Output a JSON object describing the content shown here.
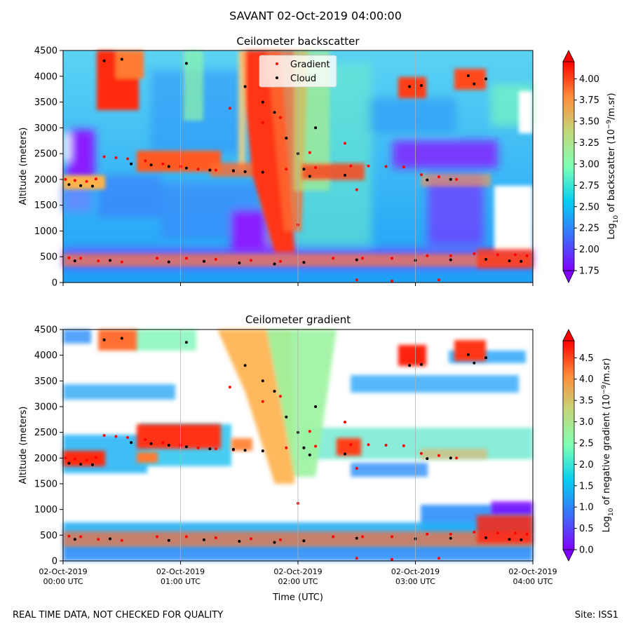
{
  "figure": {
    "title": "SAVANT 02-Oct-2019 04:00:00",
    "footer_left": "REAL TIME DATA, NOT CHECKED FOR QUALITY",
    "footer_right": "Site: ISS1"
  },
  "chart_data": [
    {
      "type": "heatmap",
      "title": "Ceilometer backscatter",
      "xlabel": "",
      "ylabel": "Altitude (meters)",
      "xlim": [
        0,
        4
      ],
      "ylim": [
        0,
        4500
      ],
      "yticks": [
        0,
        500,
        1000,
        1500,
        2000,
        2500,
        3000,
        3500,
        4000,
        4500
      ],
      "xticks": [
        0,
        1,
        2,
        3,
        4
      ],
      "xtick_labels": [],
      "vertical_grid": true,
      "colormap": "rainbow",
      "colorbar": {
        "label": "Log10 of backscatter (10^-9/m.sr)",
        "label_main": "Log",
        "label_sub": "10",
        "label_mid": " of backscatter (10",
        "label_sup": "−9",
        "label_end": "/m.sr)",
        "min": 1.75,
        "max": 4.2,
        "extend": "both",
        "ticks": [
          "1.75",
          "2.00",
          "2.25",
          "2.50",
          "2.75",
          "3.00",
          "3.25",
          "3.50",
          "3.75",
          "4.00"
        ]
      },
      "legend": {
        "placement": "top-center",
        "entries": [
          {
            "label": "Gradient",
            "color": "#ff0000"
          },
          {
            "label": "Cloud",
            "color": "#000000"
          }
        ]
      },
      "series": [
        {
          "name": "Gradient",
          "color": "#ff0000",
          "points": [
            [
              0.02,
              2000
            ],
            [
              0.1,
              1980
            ],
            [
              0.2,
              1960
            ],
            [
              0.28,
              2010
            ],
            [
              0.35,
              2440
            ],
            [
              0.45,
              2420
            ],
            [
              0.55,
              2400
            ],
            [
              0.7,
              2360
            ],
            [
              0.85,
              2300
            ],
            [
              1.0,
              2250
            ],
            [
              1.15,
              2200
            ],
            [
              1.3,
              2180
            ],
            [
              1.45,
              2160
            ],
            [
              1.9,
              2200
            ],
            [
              2.15,
              2230
            ],
            [
              2.45,
              2260
            ],
            [
              2.6,
              2260
            ],
            [
              2.75,
              2250
            ],
            [
              2.9,
              2240
            ],
            [
              3.05,
              2090
            ],
            [
              3.2,
              2050
            ],
            [
              3.35,
              2000
            ],
            [
              0.05,
              480
            ],
            [
              0.15,
              470
            ],
            [
              0.3,
              420
            ],
            [
              0.5,
              400
            ],
            [
              0.8,
              470
            ],
            [
              1.05,
              470
            ],
            [
              1.3,
              450
            ],
            [
              1.6,
              430
            ],
            [
              1.85,
              410
            ],
            [
              2.05,
              390
            ],
            [
              2.3,
              470
            ],
            [
              2.55,
              470
            ],
            [
              2.8,
              470
            ],
            [
              3.1,
              520
            ],
            [
              3.3,
              520
            ],
            [
              3.5,
              560
            ],
            [
              3.7,
              540
            ],
            [
              3.85,
              540
            ],
            [
              3.95,
              520
            ],
            [
              1.42,
              3380
            ],
            [
              1.7,
              3100
            ],
            [
              1.85,
              3200
            ],
            [
              2.1,
              2520
            ],
            [
              2.4,
              2700
            ],
            [
              2.5,
              1800
            ],
            [
              2.0,
              1120
            ],
            [
              2.5,
              50
            ],
            [
              2.8,
              30
            ],
            [
              3.2,
              50
            ]
          ]
        },
        {
          "name": "Cloud",
          "color": "#000000",
          "points": [
            [
              0.05,
              1900
            ],
            [
              0.15,
              1880
            ],
            [
              0.25,
              1870
            ],
            [
              0.58,
              2300
            ],
            [
              0.75,
              2280
            ],
            [
              0.9,
              2250
            ],
            [
              1.05,
              2220
            ],
            [
              1.25,
              2180
            ],
            [
              1.45,
              2170
            ],
            [
              1.55,
              2150
            ],
            [
              1.7,
              2140
            ],
            [
              2.1,
              2060
            ],
            [
              2.4,
              2080
            ],
            [
              3.1,
              1990
            ],
            [
              3.3,
              2000
            ],
            [
              0.1,
              420
            ],
            [
              0.4,
              430
            ],
            [
              0.9,
              400
            ],
            [
              1.2,
              410
            ],
            [
              1.5,
              380
            ],
            [
              1.8,
              360
            ],
            [
              2.05,
              390
            ],
            [
              2.5,
              440
            ],
            [
              3.0,
              430
            ],
            [
              3.3,
              440
            ],
            [
              3.6,
              450
            ],
            [
              3.8,
              420
            ],
            [
              3.9,
              410
            ],
            [
              0.35,
              4300
            ],
            [
              0.5,
              4330
            ],
            [
              1.05,
              4250
            ],
            [
              1.55,
              3800
            ],
            [
              1.7,
              3500
            ],
            [
              1.8,
              3300
            ],
            [
              1.9,
              2800
            ],
            [
              2.0,
              2500
            ],
            [
              2.05,
              2200
            ],
            [
              2.15,
              3000
            ],
            [
              2.95,
              3800
            ],
            [
              3.05,
              3820
            ],
            [
              3.45,
              4010
            ],
            [
              3.5,
              3850
            ],
            [
              3.6,
              3950
            ]
          ]
        }
      ]
    },
    {
      "type": "heatmap",
      "title": "Ceilometer gradient",
      "xlabel": "Time (UTC)",
      "ylabel": "Altitude (meters)",
      "xlim": [
        0,
        4
      ],
      "ylim": [
        0,
        4500
      ],
      "yticks": [
        0,
        500,
        1000,
        1500,
        2000,
        2500,
        3000,
        3500,
        4000,
        4500
      ],
      "xticks": [
        0,
        1,
        2,
        3,
        4
      ],
      "xtick_labels": [
        [
          "02-Oct-2019",
          "00:00 UTC"
        ],
        [
          "02-Oct-2019",
          "01:00 UTC"
        ],
        [
          "02-Oct-2019",
          "02:00 UTC"
        ],
        [
          "02-Oct-2019",
          "03:00 UTC"
        ],
        [
          "02-Oct-2019",
          "04:00 UTC"
        ]
      ],
      "vertical_grid": true,
      "colormap": "rainbow",
      "colorbar": {
        "label": "Log10 of negative gradient (10^-9/m.sr)",
        "label_main": "Log",
        "label_sub": "10",
        "label_mid": " of negative gradient (10",
        "label_sup": "−9",
        "label_end": "/m.sr)",
        "min": 0.0,
        "max": 4.9,
        "extend": "both",
        "ticks": [
          "0.0",
          "0.5",
          "1.0",
          "1.5",
          "2.0",
          "2.5",
          "3.0",
          "3.5",
          "4.0",
          "4.5"
        ]
      },
      "series": [
        {
          "name": "Gradient",
          "color": "#ff0000",
          "points": [
            [
              0.02,
              2000
            ],
            [
              0.1,
              1980
            ],
            [
              0.2,
              1960
            ],
            [
              0.28,
              2010
            ],
            [
              0.35,
              2440
            ],
            [
              0.45,
              2420
            ],
            [
              0.55,
              2400
            ],
            [
              0.7,
              2360
            ],
            [
              0.85,
              2300
            ],
            [
              1.0,
              2250
            ],
            [
              1.15,
              2200
            ],
            [
              1.3,
              2180
            ],
            [
              1.45,
              2160
            ],
            [
              1.9,
              2200
            ],
            [
              2.15,
              2230
            ],
            [
              2.45,
              2260
            ],
            [
              2.6,
              2260
            ],
            [
              2.75,
              2250
            ],
            [
              2.9,
              2240
            ],
            [
              3.05,
              2090
            ],
            [
              3.2,
              2050
            ],
            [
              3.35,
              2000
            ],
            [
              0.05,
              480
            ],
            [
              0.15,
              470
            ],
            [
              0.3,
              420
            ],
            [
              0.5,
              400
            ],
            [
              0.8,
              470
            ],
            [
              1.05,
              470
            ],
            [
              1.3,
              450
            ],
            [
              1.6,
              430
            ],
            [
              1.85,
              410
            ],
            [
              2.05,
              390
            ],
            [
              2.3,
              470
            ],
            [
              2.55,
              470
            ],
            [
              2.8,
              470
            ],
            [
              3.1,
              520
            ],
            [
              3.3,
              520
            ],
            [
              3.5,
              560
            ],
            [
              3.7,
              540
            ],
            [
              3.85,
              540
            ],
            [
              3.95,
              520
            ],
            [
              1.42,
              3380
            ],
            [
              1.7,
              3100
            ],
            [
              1.85,
              3200
            ],
            [
              2.1,
              2520
            ],
            [
              2.4,
              2700
            ],
            [
              2.5,
              1800
            ],
            [
              2.0,
              1120
            ],
            [
              2.5,
              50
            ],
            [
              2.8,
              30
            ],
            [
              3.2,
              50
            ]
          ]
        },
        {
          "name": "Cloud",
          "color": "#000000",
          "points": [
            [
              0.05,
              1900
            ],
            [
              0.15,
              1880
            ],
            [
              0.25,
              1870
            ],
            [
              0.58,
              2300
            ],
            [
              0.75,
              2280
            ],
            [
              0.9,
              2250
            ],
            [
              1.05,
              2220
            ],
            [
              1.25,
              2180
            ],
            [
              1.45,
              2170
            ],
            [
              1.55,
              2150
            ],
            [
              1.7,
              2140
            ],
            [
              2.1,
              2060
            ],
            [
              2.4,
              2080
            ],
            [
              3.1,
              1990
            ],
            [
              3.3,
              2000
            ],
            [
              0.1,
              420
            ],
            [
              0.4,
              430
            ],
            [
              0.9,
              400
            ],
            [
              1.2,
              410
            ],
            [
              1.5,
              380
            ],
            [
              1.8,
              360
            ],
            [
              2.05,
              390
            ],
            [
              2.5,
              440
            ],
            [
              3.0,
              430
            ],
            [
              3.3,
              440
            ],
            [
              3.6,
              450
            ],
            [
              3.8,
              420
            ],
            [
              3.9,
              410
            ],
            [
              0.35,
              4300
            ],
            [
              0.5,
              4330
            ],
            [
              1.05,
              4250
            ],
            [
              1.55,
              3800
            ],
            [
              1.7,
              3500
            ],
            [
              1.8,
              3300
            ],
            [
              1.9,
              2800
            ],
            [
              2.0,
              2500
            ],
            [
              2.05,
              2200
            ],
            [
              2.15,
              3000
            ],
            [
              2.95,
              3800
            ],
            [
              3.05,
              3820
            ],
            [
              3.45,
              4010
            ],
            [
              3.5,
              3850
            ],
            [
              3.6,
              3950
            ]
          ]
        }
      ]
    }
  ]
}
